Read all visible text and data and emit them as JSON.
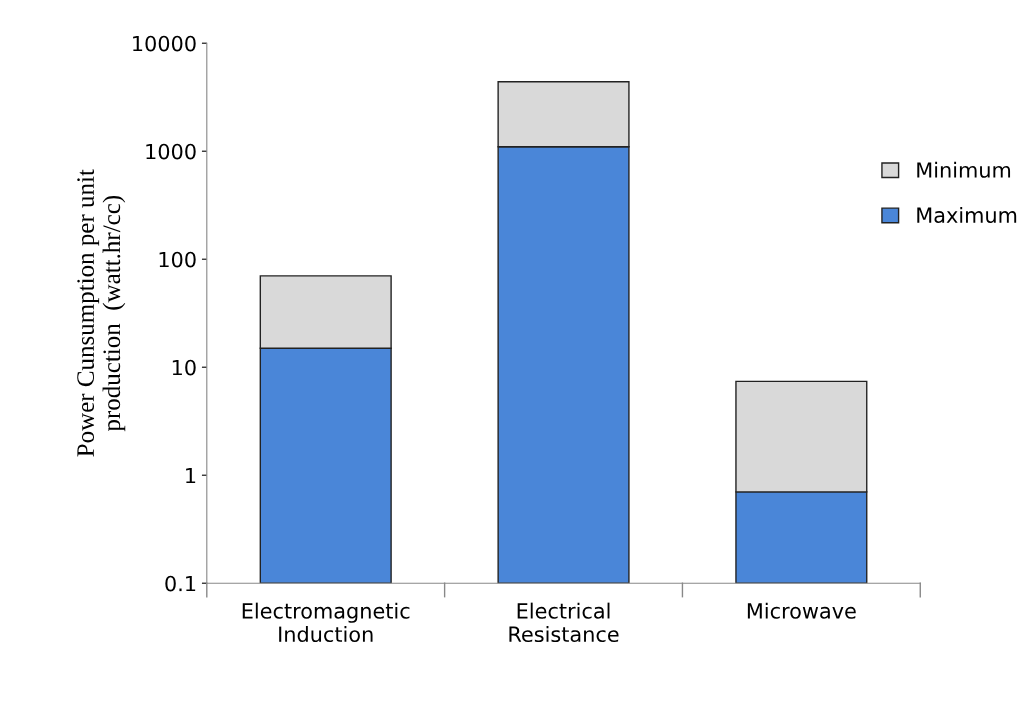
{
  "chart_data": {
    "type": "bar",
    "stacked": true,
    "log": true,
    "ylabel": "Power Cunsumption per unit\nproduction  (watt.hr/cc)",
    "categories": [
      "Electromagnetic\nInduction",
      "Electrical\nResistance",
      "Microwave"
    ],
    "series": [
      {
        "name": "Maximum",
        "color": "#4a86d8",
        "values": [
          15,
          1100,
          0.7
        ]
      },
      {
        "name": "Minimum",
        "color": "#d9d9d9",
        "values": [
          55,
          3300,
          6.7
        ]
      }
    ],
    "ylim": [
      0.1,
      10000
    ],
    "yticks": [
      0.1,
      1,
      10,
      100,
      1000,
      10000
    ],
    "grid": false,
    "legend": "right"
  }
}
